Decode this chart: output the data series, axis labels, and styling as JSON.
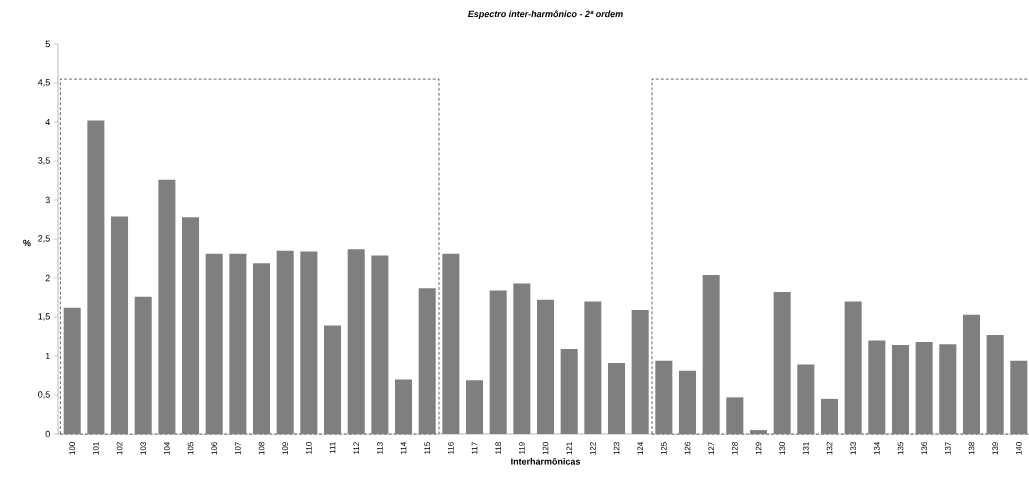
{
  "chart_data": {
    "type": "bar",
    "title": "Espectro inter-harmônico  - 2ª ordem",
    "xlabel": "Interharmônicas",
    "ylabel": "%",
    "categories": [
      "100",
      "101",
      "102",
      "103",
      "104",
      "105",
      "106",
      "107",
      "108",
      "109",
      "110",
      "111",
      "112",
      "113",
      "114",
      "115",
      "116",
      "117",
      "118",
      "119",
      "120",
      "121",
      "122",
      "123",
      "124",
      "125",
      "126",
      "127",
      "128",
      "129",
      "130",
      "131",
      "132",
      "133",
      "134",
      "135",
      "136",
      "137",
      "138",
      "139",
      "140"
    ],
    "values": [
      1.62,
      4.02,
      2.79,
      1.76,
      3.26,
      2.78,
      2.31,
      2.31,
      2.19,
      2.35,
      2.34,
      1.39,
      2.37,
      2.29,
      0.7,
      1.87,
      2.31,
      0.69,
      1.84,
      1.93,
      1.72,
      1.09,
      1.7,
      0.91,
      1.59,
      0.94,
      0.81,
      2.04,
      0.47,
      0.05,
      1.82,
      0.89,
      0.45,
      1.7,
      1.2,
      1.14,
      1.18,
      1.15,
      1.53,
      1.27,
      0.94
    ],
    "color": "#7f7f7f",
    "ylim": [
      0,
      5
    ],
    "yticks": [
      0,
      {
        "value": 0.5,
        "label": "0,5"
      },
      1,
      {
        "value": 1.5,
        "label": "1,5"
      },
      2,
      {
        "value": 2.5,
        "label": "2,5"
      },
      3,
      {
        "value": 3.5,
        "label": "3,5"
      },
      4,
      {
        "value": 4.5,
        "label": "4,5"
      },
      5
    ],
    "bands": [
      {
        "axis": "x",
        "from": "100",
        "to": "115",
        "color": "#ffffff"
      },
      {
        "axis": "x",
        "from": "125",
        "to": "140",
        "color": "#ffffff"
      }
    ],
    "grid": false
  }
}
